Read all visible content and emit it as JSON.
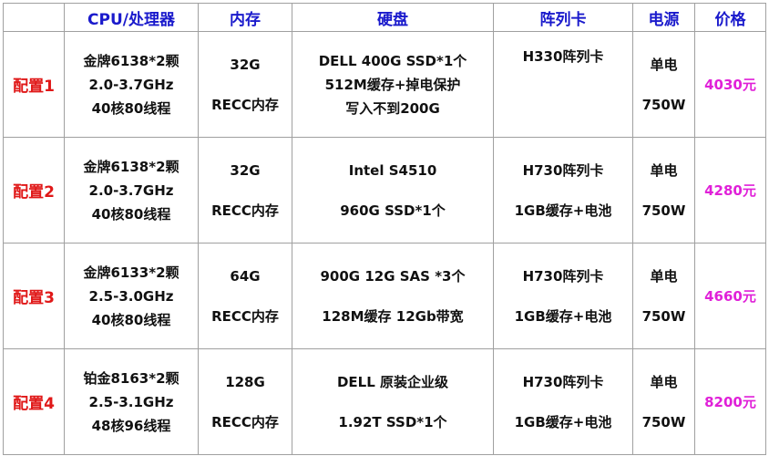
{
  "headers": [
    "",
    "CPU/处理器",
    "内存",
    "硬盘",
    "阵列卡",
    "电源",
    "价格"
  ],
  "rows": [
    {
      "label": "配置1",
      "cpu": [
        "金牌6138*2颗",
        "2.0-3.7GHz",
        "40核80线程"
      ],
      "memory": [
        "32G",
        "RECC内存"
      ],
      "disk": [
        "DELL 400G SSD*1个",
        "512M缓存+掉电保护",
        "写入不到200G"
      ],
      "raid": [
        "H330阵列卡"
      ],
      "power": [
        "单电",
        "750W"
      ],
      "price": "4030元"
    },
    {
      "label": "配置2",
      "cpu": [
        "金牌6138*2颗",
        "2.0-3.7GHz",
        "40核80线程"
      ],
      "memory": [
        "32G",
        "RECC内存"
      ],
      "disk": [
        "Intel S4510",
        "960G SSD*1个"
      ],
      "raid": [
        "H730阵列卡",
        "1GB缓存+电池"
      ],
      "power": [
        "单电",
        "750W"
      ],
      "price": "4280元"
    },
    {
      "label": "配置3",
      "cpu": [
        "金牌6133*2颗",
        "2.5-3.0GHz",
        "40核80线程"
      ],
      "memory": [
        "64G",
        "RECC内存"
      ],
      "disk": [
        "900G 12G SAS *3个",
        "128M缓存 12Gb带宽"
      ],
      "raid": [
        "H730阵列卡",
        "1GB缓存+电池"
      ],
      "power": [
        "单电",
        "750W"
      ],
      "price": "4660元"
    },
    {
      "label": "配置4",
      "cpu": [
        "铂金8163*2颗",
        "2.5-3.1GHz",
        "48核96线程"
      ],
      "memory": [
        "128G",
        "RECC内存"
      ],
      "disk": [
        "DELL 原装企业级",
        "1.92T  SSD*1个"
      ],
      "raid": [
        "H730阵列卡",
        "1GB缓存+电池"
      ],
      "power": [
        "单电",
        "750W"
      ],
      "price": "8200元"
    }
  ]
}
